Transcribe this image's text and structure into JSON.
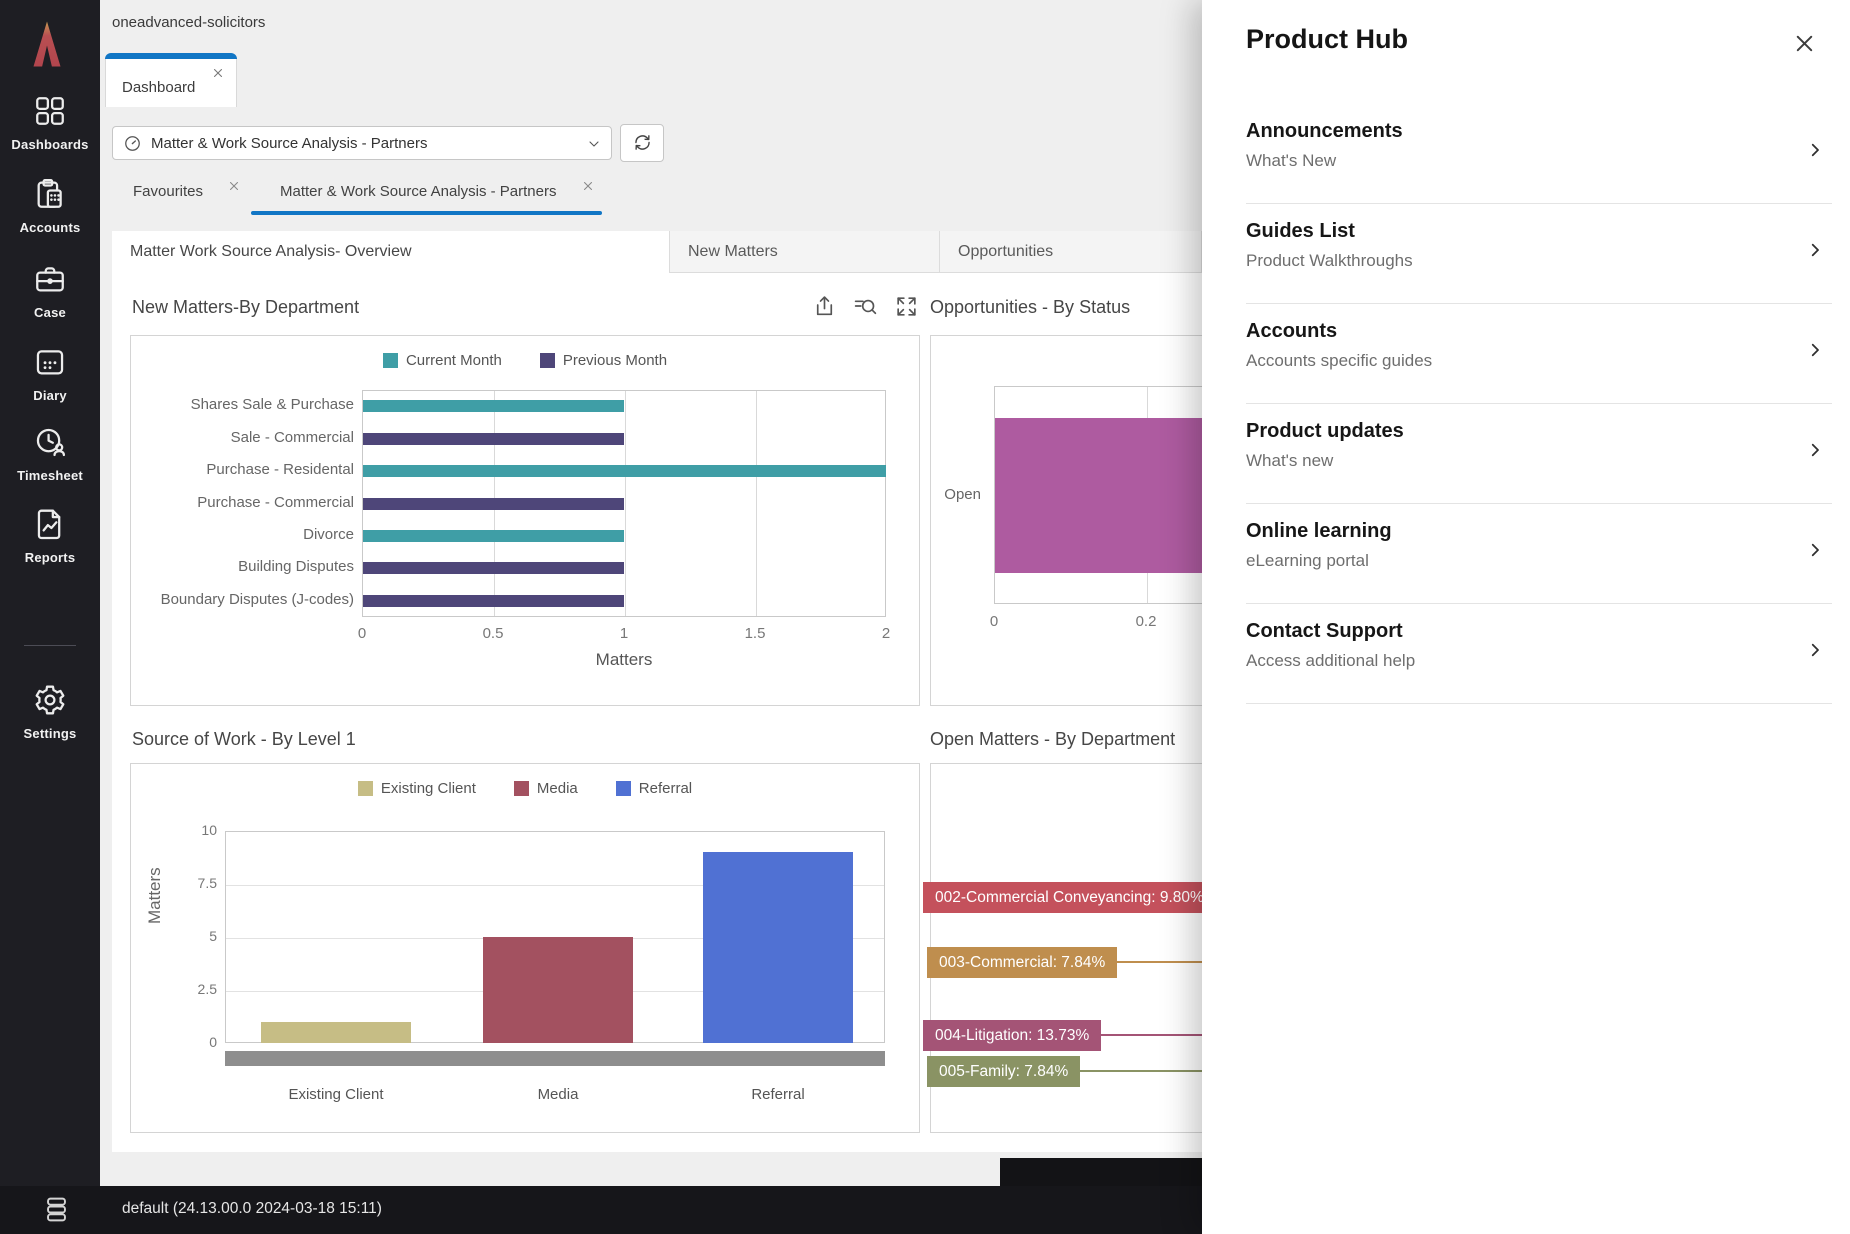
{
  "header": {
    "workspace": "oneadvanced-solicitors",
    "window_tab": "Dashboard",
    "selector": {
      "value": "Matter & Work Source Analysis - Partners",
      "icon": "gauge-icon"
    },
    "refresh_icon": "refresh-icon",
    "view_tabs": [
      {
        "label": "Favourites",
        "active": false
      },
      {
        "label": "Matter & Work Source Analysis - Partners",
        "active": true
      }
    ]
  },
  "sidebar": {
    "items": [
      {
        "label": "Dashboards",
        "icon": "dashboards-icon"
      },
      {
        "label": "Accounts",
        "icon": "accounts-icon"
      },
      {
        "label": "Case",
        "icon": "case-icon"
      },
      {
        "label": "Diary",
        "icon": "diary-icon"
      },
      {
        "label": "Timesheet",
        "icon": "timesheet-icon"
      },
      {
        "label": "Reports",
        "icon": "reports-icon",
        "divider_after": true
      },
      {
        "label": "Settings",
        "icon": "settings-icon"
      }
    ]
  },
  "page_tabs": [
    {
      "label": "Matter Work Source Analysis- Overview",
      "active": true
    },
    {
      "label": "New Matters",
      "active": false
    },
    {
      "label": "Opportunities",
      "active": false
    }
  ],
  "toolbar_icons": [
    "export-icon",
    "search-filter-icon",
    "expand-icon"
  ],
  "chart_data": [
    {
      "type": "bar",
      "orientation": "horizontal",
      "title": "New Matters-By Department",
      "xlabel": "Matters",
      "xlim": [
        0,
        2
      ],
      "x_ticks": [
        "0",
        "0.5",
        "1",
        "1.5",
        "2"
      ],
      "legend": [
        {
          "name": "Current Month",
          "color": "#3f9ea6"
        },
        {
          "name": "Previous Month",
          "color": "#4e4679"
        }
      ],
      "rows": [
        {
          "category": "Shares Sale & Purchase",
          "series": "Current Month",
          "value": 1
        },
        {
          "category": "Sale - Commercial",
          "series": "Previous Month",
          "value": 1
        },
        {
          "category": "Purchase - Residental",
          "series": "Current Month",
          "value": 2
        },
        {
          "category": "Purchase - Commercial",
          "series": "Previous Month",
          "value": 1
        },
        {
          "category": "Divorce",
          "series": "Current Month",
          "value": 1
        },
        {
          "category": "Building Disputes",
          "series": "Previous Month",
          "value": 1
        },
        {
          "category": "Boundary Disputes (J-codes)",
          "series": "Previous Month",
          "value": 1
        }
      ]
    },
    {
      "type": "bar",
      "orientation": "horizontal",
      "title": "Opportunities - By Status",
      "categories": [
        "Open"
      ],
      "x_ticks": [
        "0",
        "0.2"
      ],
      "x_tick_values": [
        0,
        0.2
      ],
      "series": [
        {
          "name": "Open",
          "value_visible_min": 0.28,
          "color": "#ae5ba0",
          "clipped_by_overlay": true
        }
      ],
      "note": "right portion of chart hidden behind Product Hub panel"
    },
    {
      "type": "bar",
      "orientation": "vertical",
      "title": "Source of Work - By Level 1",
      "ylabel": "Matters",
      "ylim": [
        0,
        10
      ],
      "y_ticks": [
        "0",
        "2.5",
        "5",
        "7.5",
        "10"
      ],
      "categories": [
        "Existing Client",
        "Media",
        "Referral"
      ],
      "values": [
        1,
        5,
        9
      ],
      "colors": [
        "#c6bd85",
        "#a35160",
        "#5071d3"
      ],
      "legend": [
        {
          "name": "Existing Client",
          "color": "#c6bd85"
        },
        {
          "name": "Media",
          "color": "#a35160"
        },
        {
          "name": "Referral",
          "color": "#5071d3"
        }
      ]
    },
    {
      "type": "pie",
      "title": "Open Matters - By Department",
      "visible_labels": [
        {
          "text": "002-Commercial Conveyancing: 9.80%",
          "color": "#c4515c"
        },
        {
          "text": "003-Commercial: 7.84%",
          "color": "#bf8e4e"
        },
        {
          "text": "004-Litigation: 13.73%",
          "color": "#a45476"
        },
        {
          "text": "005-Family: 7.84%",
          "color": "#8a9364"
        }
      ],
      "note": "pie itself hidden behind Product Hub panel; only data labels visible"
    }
  ],
  "product_hub": {
    "title": "Product Hub",
    "close_icon": "close-icon",
    "items": [
      {
        "title": "Announcements",
        "subtitle": "What's New"
      },
      {
        "title": "Guides List",
        "subtitle": "Product Walkthroughs"
      },
      {
        "title": "Accounts",
        "subtitle": "Accounts specific guides"
      },
      {
        "title": "Product updates",
        "subtitle": "What's new"
      },
      {
        "title": "Online learning",
        "subtitle": "eLearning portal"
      },
      {
        "title": "Contact Support",
        "subtitle": "Access additional help"
      }
    ]
  },
  "status_bar": {
    "icon": "database-icon",
    "text": "default (24.13.00.0 2024-03-18 15:11)"
  },
  "colors": {
    "accent_blue": "#1176c5",
    "sidebar_bg": "#1e1e23",
    "status_bg": "#16161a",
    "teal": "#3f9ea6",
    "purple": "#4e4679",
    "magenta": "#ae5ba0",
    "khaki": "#c6bd85",
    "dark_red": "#a35160",
    "referral_blue": "#5071d3"
  }
}
